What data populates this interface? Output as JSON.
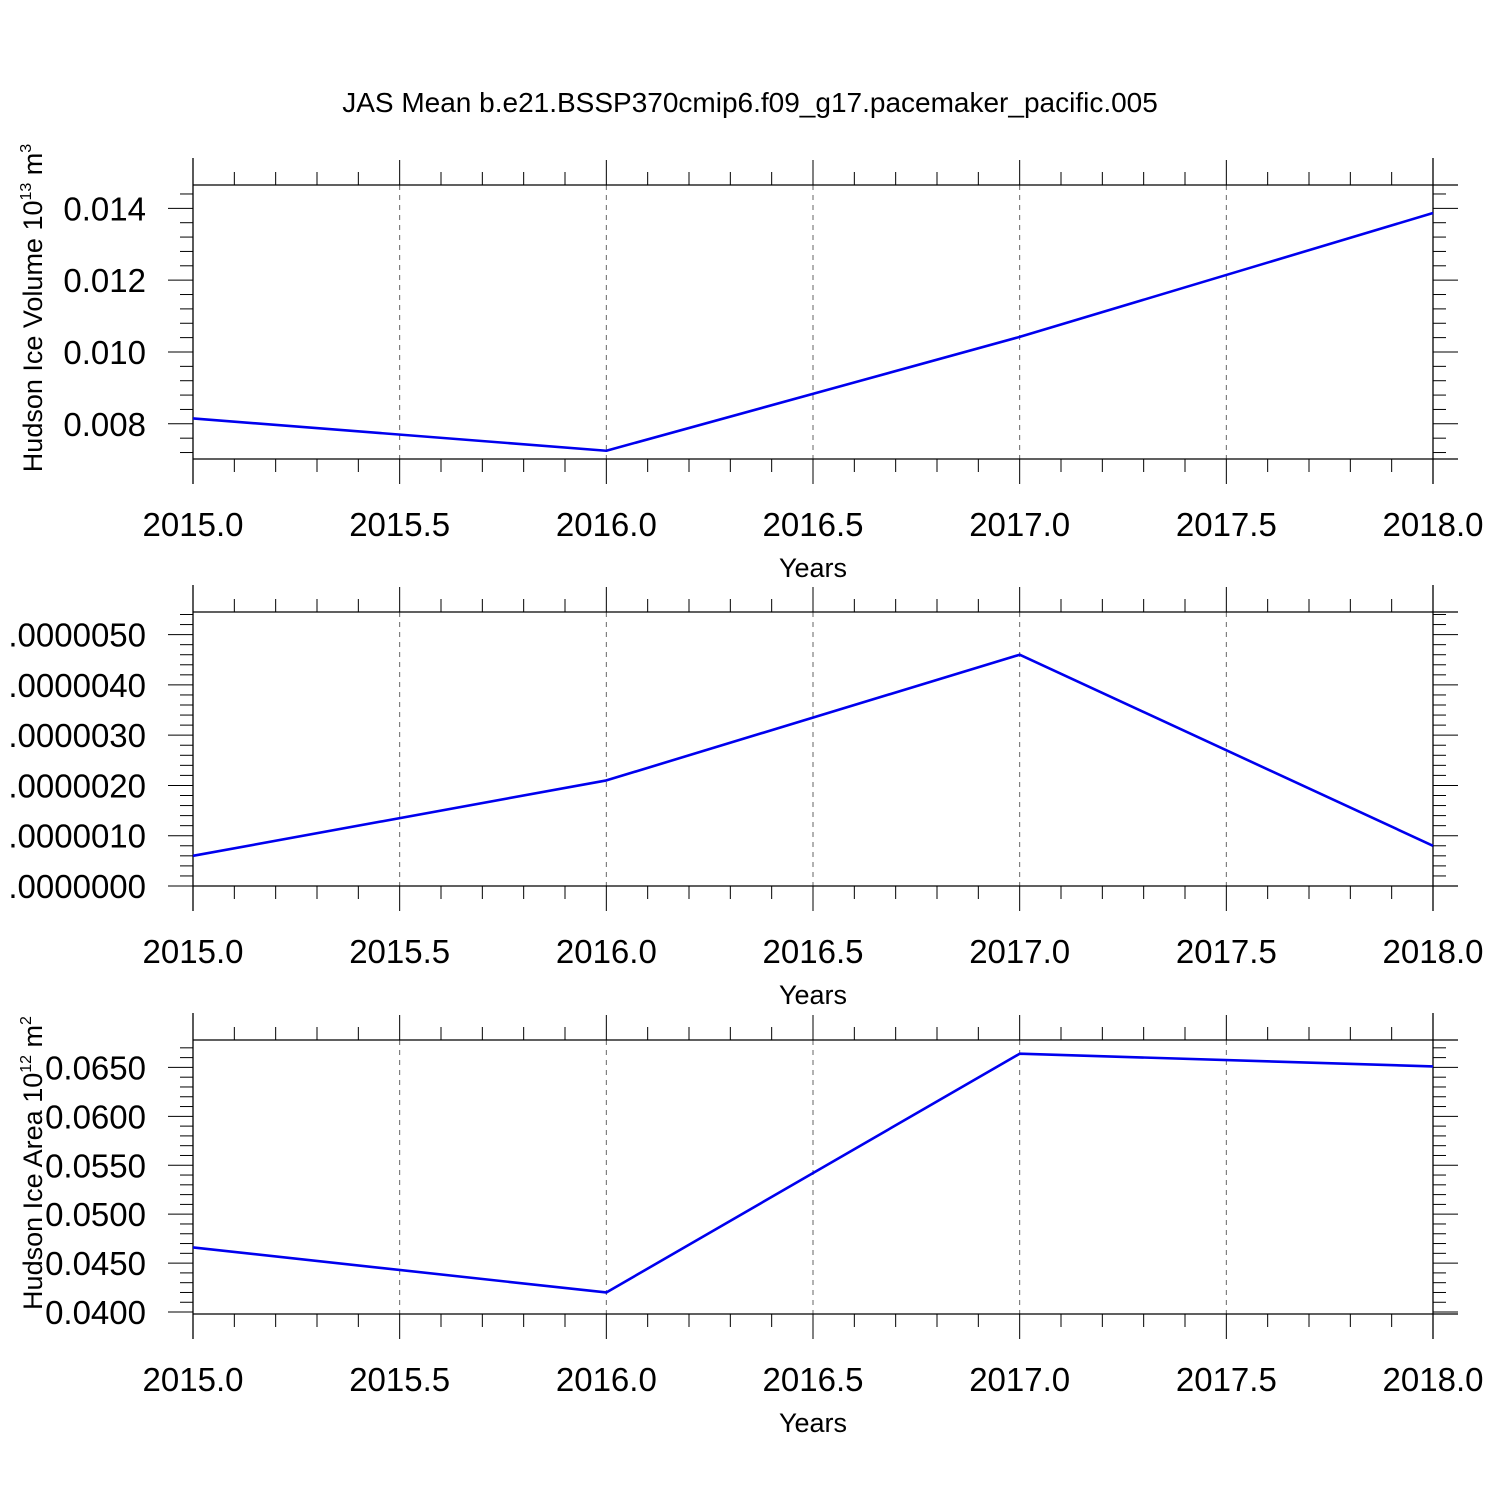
{
  "title": "JAS Mean b.e21.BSSP370cmip6.f09_g17.pacemaker_pacific.005",
  "colors": {
    "line": "#0000ee",
    "axes": "#000000",
    "grid": "#666666"
  },
  "chart_data": [
    {
      "type": "line",
      "xlabel": "Years",
      "ylabel_main": "Hudson Ice Volume 10",
      "ylabel_exp": "13",
      "ylabel_tail": " m",
      "ylabel_unit_exp": "3",
      "xlim": [
        2015.0,
        2018.0
      ],
      "ylim": [
        0.00702,
        0.01465
      ],
      "x_ticks": [
        "2015.0",
        "2015.5",
        "2016.0",
        "2016.5",
        "2017.0",
        "2017.5",
        "2018.0"
      ],
      "y_ticks": [
        "0.008",
        "0.010",
        "0.012",
        "0.014"
      ],
      "x": [
        2015,
        2016,
        2017,
        2018
      ],
      "series": [
        {
          "values": [
            0.00815,
            0.00725,
            0.01042,
            0.01387
          ]
        }
      ],
      "grid": "x-dashed"
    },
    {
      "type": "line",
      "xlabel": "Years",
      "ylabel_main": "",
      "ylabel_exp": "",
      "ylabel_tail": "",
      "ylabel_unit_exp": "",
      "xlim": [
        2015.0,
        2018.0
      ],
      "ylim": [
        0.0,
        5.45e-06
      ],
      "x_ticks": [
        "2015.0",
        "2015.5",
        "2016.0",
        "2016.5",
        "2017.0",
        "2017.5",
        "2018.0"
      ],
      "y_ticks": [
        ".0000000",
        ".0000010",
        ".0000020",
        ".0000030",
        ".0000040",
        ".0000050"
      ],
      "x": [
        2015,
        2016,
        2017,
        2018
      ],
      "series": [
        {
          "values": [
            6e-07,
            2.1e-06,
            4.6e-06,
            8e-07
          ]
        }
      ],
      "grid": "x-dashed"
    },
    {
      "type": "line",
      "xlabel": "Years",
      "ylabel_main": "Hudson Ice Area 10",
      "ylabel_exp": "12",
      "ylabel_tail": " m",
      "ylabel_unit_exp": "2",
      "xlim": [
        2015.0,
        2018.0
      ],
      "ylim": [
        0.0398,
        0.0678
      ],
      "x_ticks": [
        "2015.0",
        "2015.5",
        "2016.0",
        "2016.5",
        "2017.0",
        "2017.5",
        "2018.0"
      ],
      "y_ticks": [
        "0.0400",
        "0.0450",
        "0.0500",
        "0.0550",
        "0.0600",
        "0.0650"
      ],
      "x": [
        2015,
        2016,
        2017,
        2018
      ],
      "series": [
        {
          "values": [
            0.0466,
            0.042,
            0.0664,
            0.0651
          ]
        }
      ],
      "grid": "x-dashed"
    }
  ]
}
